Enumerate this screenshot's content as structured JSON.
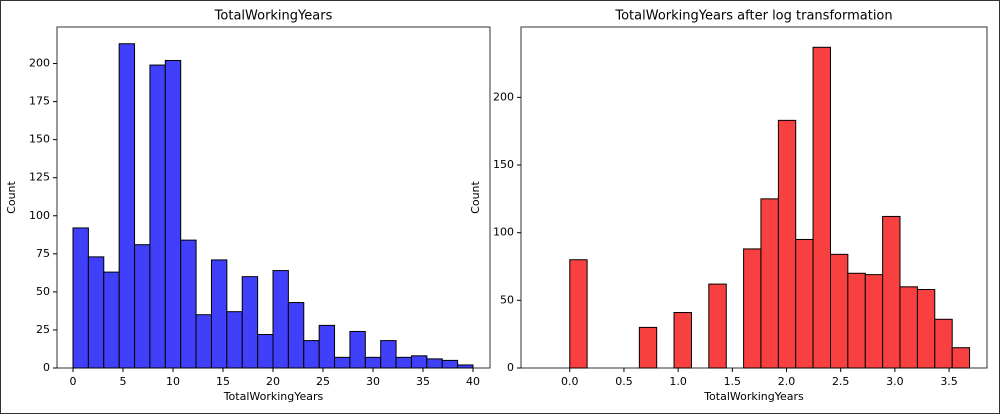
{
  "chart_data": [
    {
      "type": "histogram",
      "title": "TotalWorkingYears",
      "xlabel": "TotalWorkingYears",
      "ylabel": "Count",
      "color": "#4040fb",
      "bins": [
        0,
        1.538,
        3.077,
        4.615,
        6.154,
        7.692,
        9.231,
        10.769,
        12.308,
        13.846,
        15.385,
        16.923,
        18.462,
        20,
        21.538,
        23.077,
        24.615,
        26.154,
        27.692,
        29.231,
        30.769,
        32.308,
        33.846,
        35.385,
        36.923,
        38.462,
        40
      ],
      "values": [
        92,
        73,
        63,
        213,
        81,
        199,
        202,
        84,
        35,
        71,
        37,
        60,
        22,
        64,
        43,
        18,
        28,
        7,
        24,
        7,
        18,
        7,
        8,
        6,
        5,
        2
      ],
      "xlim": [
        -1.6,
        41.7
      ],
      "ylim": [
        0,
        224
      ],
      "xticks": [
        0,
        5,
        10,
        15,
        20,
        25,
        30,
        35,
        40
      ],
      "yticks": [
        0,
        25,
        50,
        75,
        100,
        125,
        150,
        175,
        200
      ]
    },
    {
      "type": "histogram",
      "title": "TotalWorkingYears after log transformation",
      "xlabel": "TotalWorkingYears",
      "ylabel": "Count",
      "color": "#f94040",
      "bins": [
        0,
        0.16,
        0.321,
        0.481,
        0.642,
        0.802,
        0.962,
        1.123,
        1.283,
        1.444,
        1.604,
        1.764,
        1.925,
        2.085,
        2.245,
        2.406,
        2.566,
        2.727,
        2.887,
        3.047,
        3.208,
        3.368,
        3.529,
        3.689
      ],
      "values": [
        80,
        0,
        0,
        0,
        30,
        0,
        41,
        0,
        62,
        0,
        88,
        125,
        183,
        95,
        237,
        84,
        70,
        69,
        112,
        60,
        58,
        36,
        15
      ],
      "xlim": [
        -0.45,
        3.85
      ],
      "ylim": [
        0,
        252
      ],
      "xticks": [
        {
          "value": 0,
          "label": "0.0"
        },
        0.5,
        {
          "value": 1,
          "label": "1.0"
        },
        1.5,
        {
          "value": 2,
          "label": "2.0"
        },
        2.5,
        {
          "value": 3,
          "label": "3.0"
        },
        3.5
      ],
      "yticks": [
        0,
        50,
        100,
        150,
        200
      ]
    }
  ]
}
